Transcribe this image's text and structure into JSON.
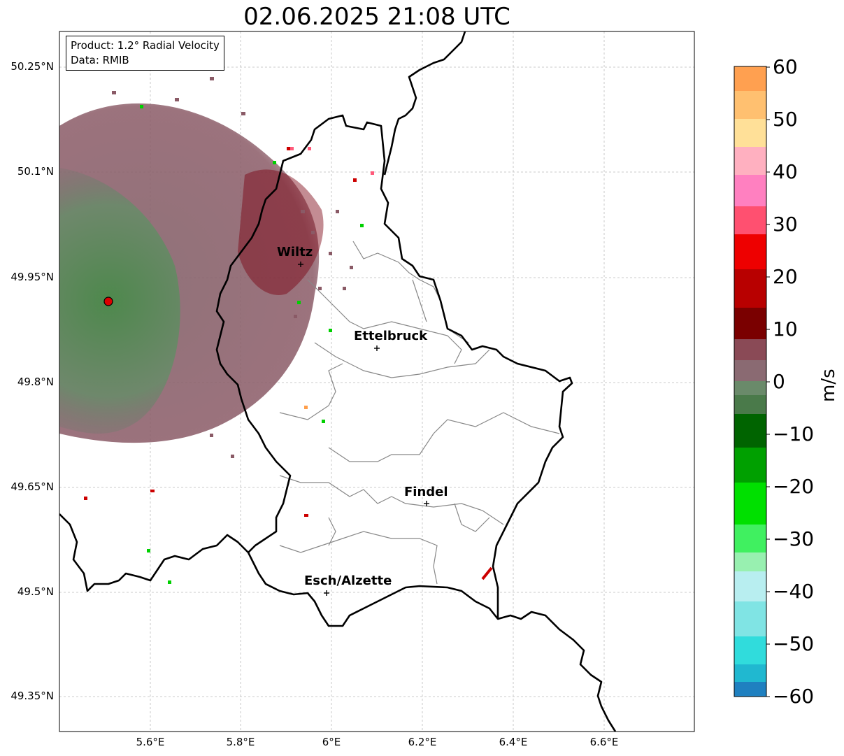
{
  "title": "02.06.2025 21:08 UTC",
  "info": {
    "product": "Product: 1.2° Radial Velocity",
    "data": "Data: RMIB"
  },
  "axes": {
    "lat_labels": [
      "50.25°N",
      "50.1°N",
      "49.95°N",
      "49.8°N",
      "49.65°N",
      "49.5°N",
      "49.35°N"
    ],
    "lon_labels": [
      "5.6°E",
      "5.8°E",
      "6°E",
      "6.2°E",
      "6.4°E",
      "6.6°E"
    ]
  },
  "cities": [
    {
      "name": "Wiltz"
    },
    {
      "name": "Ettelbruck"
    },
    {
      "name": "Findel"
    },
    {
      "name": "Esch/Alzette"
    }
  ],
  "colorbar": {
    "unit": "m/s",
    "ticks": [
      "60",
      "50",
      "40",
      "30",
      "20",
      "10",
      "0",
      "−10",
      "−20",
      "−30",
      "−40",
      "−50",
      "−60"
    ],
    "range": [
      -60,
      60
    ],
    "stops": [
      "#ff9e4a",
      "#ffd48c",
      "#ffb2c8",
      "#ff5a7a",
      "#ff0000",
      "#7a0000",
      "#8a6a6e",
      "#5a8a5a",
      "#006400",
      "#00e000",
      "#98f0b0",
      "#b8f0f0",
      "#30e0e0",
      "#1f77b4"
    ]
  }
}
